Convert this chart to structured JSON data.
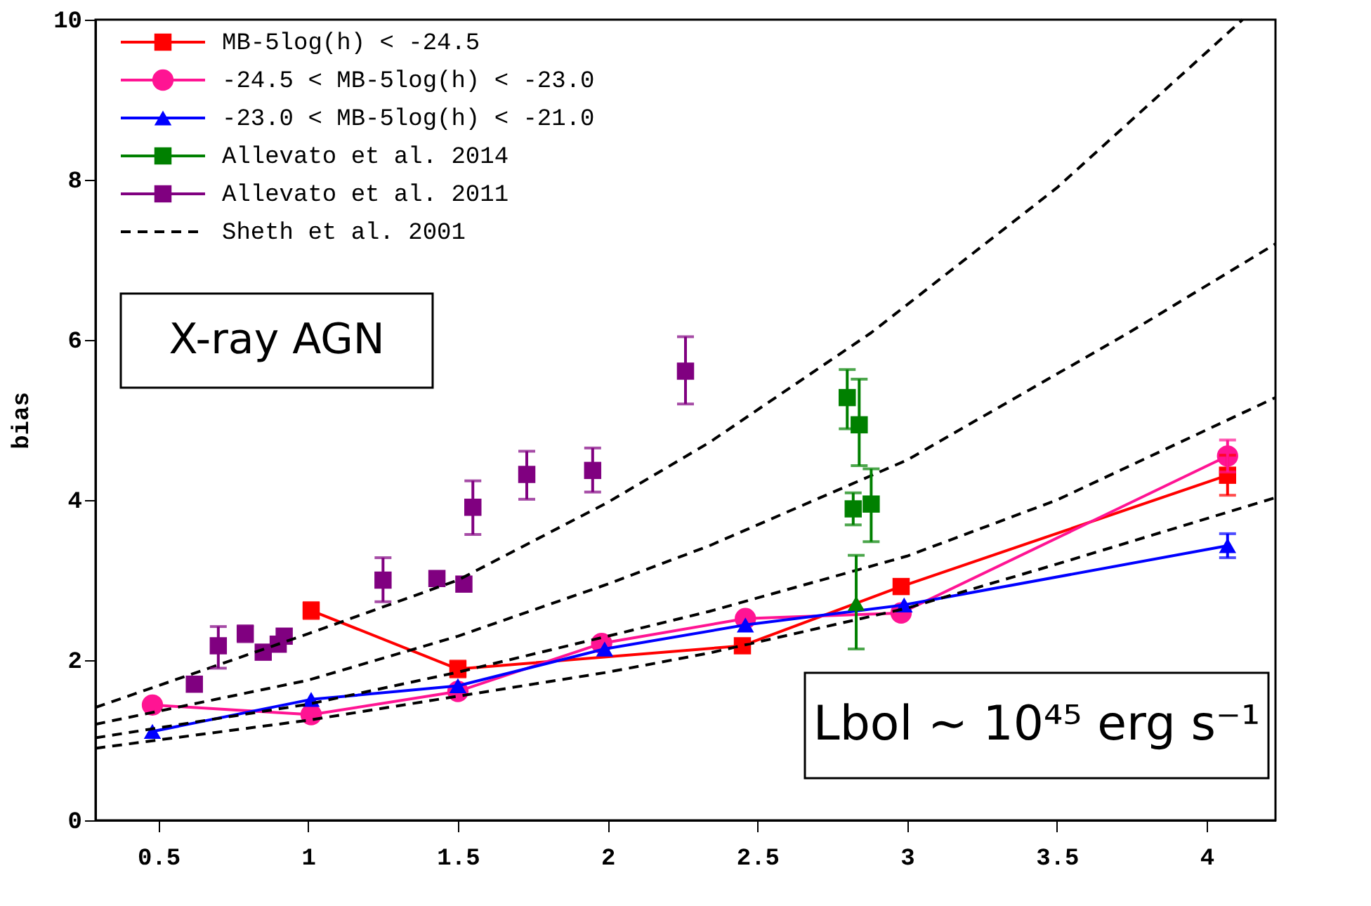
{
  "chart_data": {
    "type": "line",
    "ylabel": "bias",
    "xlim": [
      0.29,
      4.23
    ],
    "ylim": [
      0,
      10
    ],
    "xticks": [
      0.5,
      1,
      1.5,
      2,
      2.5,
      3,
      3.5,
      4
    ],
    "yticks": [
      0,
      2,
      4,
      6,
      8,
      10
    ],
    "grid": false,
    "legend": "top left",
    "annotations": [
      "X-ray AGN",
      "Lbol ~ 10⁴⁵ erg s⁻¹"
    ],
    "series": [
      {
        "name": "MB-5log(h) < -24.5",
        "color": "#ff0000",
        "type": "line",
        "marker": "square",
        "x": [
          1.01,
          1.5,
          2.45,
          2.98,
          4.07
        ],
        "values": [
          2.62,
          1.89,
          2.18,
          2.92,
          4.31
        ],
        "errors": [
          0.1,
          0.1,
          0.05,
          0.07,
          0.25
        ]
      },
      {
        "name": "-24.5 < MB-5log(h) < -23.0",
        "color": "#ff1493",
        "type": "line",
        "marker": "circle",
        "x": [
          0.48,
          1.01,
          1.5,
          1.98,
          2.46,
          2.98,
          4.07
        ],
        "values": [
          1.44,
          1.32,
          1.61,
          2.21,
          2.52,
          2.59,
          4.55
        ],
        "errors": [
          null,
          null,
          null,
          null,
          null,
          null,
          0.2
        ]
      },
      {
        "name": "-23.0 < MB-5log(h) < -21.0",
        "color": "#0000ff",
        "type": "line",
        "marker": "triangle",
        "x": [
          0.48,
          1.01,
          1.5,
          1.99,
          2.46,
          2.99,
          4.07
        ],
        "values": [
          1.11,
          1.51,
          1.68,
          2.14,
          2.44,
          2.69,
          3.43
        ],
        "errors": [
          null,
          null,
          null,
          null,
          null,
          null,
          0.15
        ]
      },
      {
        "name": "Allevato et al. 2014",
        "color": "#008000",
        "type": "scatter",
        "marker": "square",
        "x": [
          2.82,
          2.88
        ],
        "values": [
          3.89,
          3.95
        ],
        "errors": [
          0.2,
          [
            3.48,
            4.39
          ]
        ]
      },
      {
        "name": "Allevato et al. 2011",
        "color": "#800080",
        "type": "scatter",
        "marker": "square",
        "x": [
          0.62,
          0.7,
          0.79,
          0.85,
          0.9,
          0.92,
          1.25,
          1.43,
          1.52,
          1.55,
          1.73,
          1.95,
          2.26
        ],
        "values": [
          1.7,
          2.18,
          2.33,
          2.1,
          2.2,
          2.3,
          3.0,
          3.02,
          2.95,
          3.91,
          4.32,
          4.37,
          5.61
        ],
        "errors": [
          null,
          [
            1.9,
            2.42
          ],
          0.1,
          null,
          null,
          null,
          [
            2.73,
            3.28
          ],
          null,
          null,
          [
            3.57,
            4.24
          ],
          [
            4.01,
            4.61
          ],
          [
            4.1,
            4.65
          ],
          [
            5.2,
            6.04
          ]
        ]
      },
      {
        "name": "Sheth et al. 2001",
        "color": "#000000",
        "type": "line",
        "line_style": "dashed",
        "marker": "none",
        "x": [
          0.29,
          1,
          1.5,
          2,
          2.34,
          2.88,
          3.5,
          4.12
        ],
        "values": [
          1.41,
          2.33,
          3.0,
          3.97,
          4.72,
          6.09,
          7.9,
          10
        ]
      },
      {
        "color": "#008000",
        "type": "scatter",
        "marker": "square",
        "x": [
          2.8,
          2.84
        ],
        "values": [
          5.28,
          4.94
        ],
        "errors": [
          [
            4.89,
            5.63
          ],
          [
            4.43,
            5.51
          ]
        ]
      },
      {
        "color": "#008000",
        "type": "scatter",
        "marker": "triangle",
        "x": [
          2.83
        ],
        "values": [
          2.71
        ],
        "errors": [
          [
            2.14,
            3.31
          ]
        ]
      },
      {
        "color": "#000000",
        "type": "line",
        "line_style": "dashed",
        "marker": "none",
        "x": [
          0.29,
          1,
          1.5,
          2,
          2.34,
          3,
          3.74,
          4.23
        ],
        "values": [
          1.2,
          1.75,
          2.3,
          2.95,
          3.43,
          4.5,
          6.09,
          7.2
        ]
      },
      {
        "color": "#000000",
        "type": "line",
        "line_style": "dashed",
        "marker": "none",
        "x": [
          0.29,
          1,
          1.5,
          2,
          2.34,
          3,
          3.5,
          4.23
        ],
        "values": [
          1.03,
          1.45,
          1.85,
          2.3,
          2.61,
          3.3,
          4.0,
          5.28
        ]
      },
      {
        "color": "#000000",
        "type": "line",
        "line_style": "dashed",
        "marker": "none",
        "x": [
          0.29,
          1,
          1.5,
          2,
          2.34,
          3,
          3.5,
          4.23
        ],
        "values": [
          0.9,
          1.25,
          1.55,
          1.85,
          2.09,
          2.65,
          3.2,
          4.03
        ]
      }
    ]
  }
}
